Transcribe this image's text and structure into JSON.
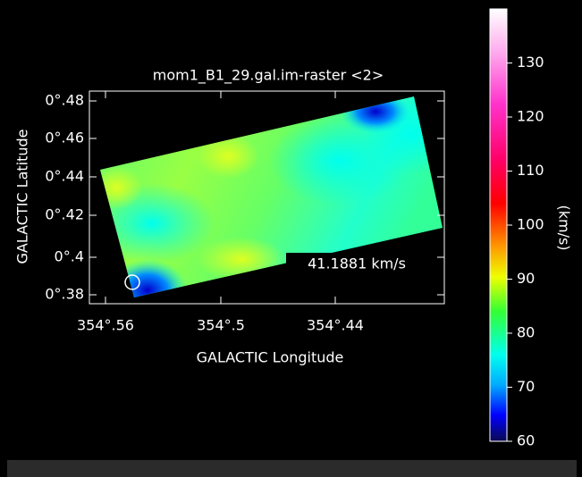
{
  "plot": {
    "title": "mom1_B1_29.gal.im-raster <2>",
    "x_label": "GALACTIC Longitude",
    "y_label": "GALACTIC Latitude",
    "x_ticks": [
      "354°.56",
      "354°.5",
      "354°.44"
    ],
    "y_ticks": [
      "0°.48",
      "0°.46",
      "0°.44",
      "0°.42",
      "0°.4",
      "0°.38"
    ],
    "cursor_value": "41.1881 km/s"
  },
  "colorbar": {
    "label": "(km/s)",
    "ylim": [
      60,
      140
    ],
    "ticks": [
      60,
      70,
      80,
      90,
      100,
      110,
      120,
      130
    ]
  }
}
